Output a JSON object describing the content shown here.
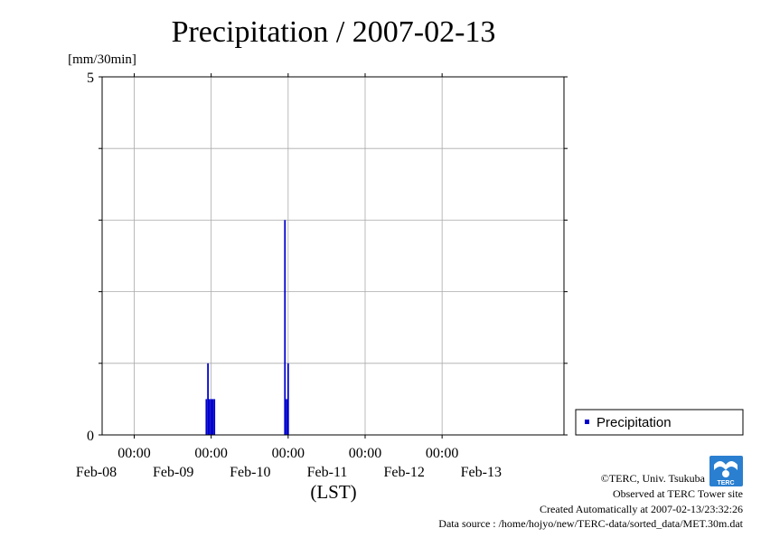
{
  "chart_data": {
    "type": "bar",
    "title": "Precipitation / 2007-02-13",
    "ylabel": "[mm/30min]",
    "xlabel": "(LST)",
    "ylim": [
      0,
      5
    ],
    "y_ticks": [
      "0",
      "5"
    ],
    "x_range": [
      "2007-02-07T14:00",
      "2007-02-13T14:00"
    ],
    "x_ticks": [
      {
        "time": "2007-02-08T00:00",
        "label_time": "00:00",
        "label_date": "Feb-08"
      },
      {
        "time": "2007-02-09T00:00",
        "label_time": "00:00",
        "label_date": "Feb-09"
      },
      {
        "time": "2007-02-10T00:00",
        "label_time": "00:00",
        "label_date": "Feb-10"
      },
      {
        "time": "2007-02-11T00:00",
        "label_time": "00:00",
        "label_date": "Feb-11"
      },
      {
        "time": "2007-02-12T00:00",
        "label_time": "00:00",
        "label_date": "Feb-12"
      }
    ],
    "x_extra_date_label": "Feb-13",
    "grid": true,
    "legend_position": "right",
    "series": [
      {
        "name": "Precipitation",
        "color": "#0000cc",
        "interval_minutes": 30,
        "points": [
          {
            "t": "2007-02-08T22:30",
            "v": 0.5
          },
          {
            "t": "2007-02-08T23:00",
            "v": 1.0
          },
          {
            "t": "2007-02-08T23:30",
            "v": 0.5
          },
          {
            "t": "2007-02-09T00:00",
            "v": 0.5
          },
          {
            "t": "2007-02-09T00:30",
            "v": 0.5
          },
          {
            "t": "2007-02-09T01:00",
            "v": 0.5
          },
          {
            "t": "2007-02-09T23:00",
            "v": 3.0
          },
          {
            "t": "2007-02-09T23:30",
            "v": 0.5
          },
          {
            "t": "2007-02-10T00:00",
            "v": 1.0
          }
        ]
      }
    ]
  },
  "credits": {
    "copyright": "©TERC, Univ. Tsukuba",
    "observed": "Observed at TERC Tower site",
    "created": "Created Automatically at 2007-02-13/23:32:26",
    "source": "Data source : /home/hojyo/new/TERC-data/sorted_data/MET.30m.dat"
  },
  "logo": {
    "text": "TERC",
    "color": "#2a7fd0"
  }
}
